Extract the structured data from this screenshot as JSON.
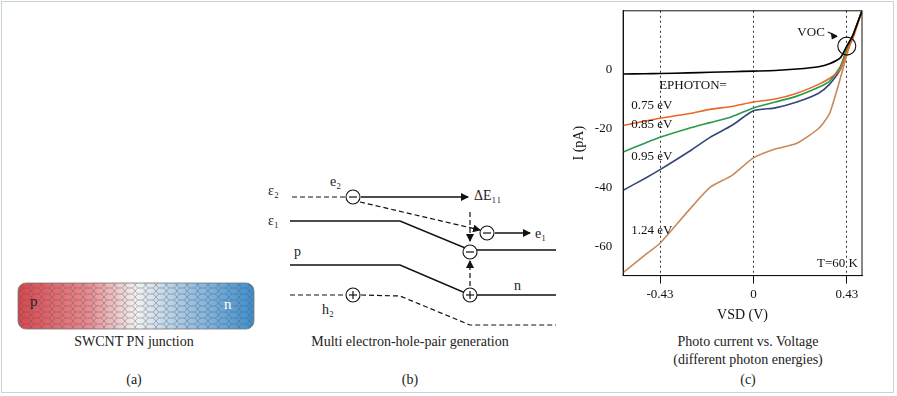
{
  "panel_a": {
    "label": "(a)",
    "caption": "SWCNT PN junction",
    "p": "p",
    "n": "n"
  },
  "panel_b": {
    "label": "(b)",
    "caption": "Multi electron-hole-pair generation",
    "texts": {
      "eps2": "ε₂",
      "e2": "e₂",
      "dE11": "ΔE₁₁",
      "eps1": "ε₁",
      "e1": "e₁",
      "p": "p",
      "n": "n",
      "h2": "h₂"
    }
  },
  "chart_data": {
    "type": "line",
    "label": "(c)",
    "caption": [
      "Photo current vs. Voltage",
      "(different photon energies)"
    ],
    "x_label": "VSD (V)",
    "y_label": "I (pA)",
    "annotations": {
      "title": "EPHOTON=",
      "voc": "VOC",
      "temperature": "T=60 K"
    },
    "x": [
      -0.6,
      -0.5,
      -0.43,
      -0.3,
      -0.2,
      -0.1,
      0,
      0.1,
      0.2,
      0.3,
      0.35,
      0.4,
      0.43,
      0.46,
      0.5
    ],
    "xlim": [
      -0.6,
      0.5
    ],
    "xticks": [
      -0.43,
      0,
      0.43
    ],
    "ylim": [
      -70,
      20
    ],
    "yticks": [
      -60,
      -40,
      -20,
      0
    ],
    "grid": "x",
    "series": [
      {
        "color": "#000000",
        "values": [
          -1.5,
          -1.4,
          -1.3,
          -1.1,
          -0.9,
          -0.7,
          -0.5,
          -0.3,
          0.2,
          1,
          2,
          4,
          8,
          12,
          20
        ]
      },
      {
        "name": "0.75 eV",
        "color": "#e8682a",
        "values": [
          -19,
          -17.5,
          -16.5,
          -15,
          -13.5,
          -12.5,
          -11,
          -10,
          -8,
          -5,
          -3,
          0,
          6,
          11,
          20
        ]
      },
      {
        "name": "0.85 eV",
        "color": "#2a9a4a",
        "values": [
          -28,
          -25,
          -23,
          -20,
          -18,
          -16,
          -13,
          -11,
          -9,
          -6,
          -4,
          1,
          7,
          12,
          20
        ]
      },
      {
        "name": "0.95 eV",
        "color": "#34477a",
        "values": [
          -41,
          -37,
          -34,
          -28,
          -23,
          -19,
          -14,
          -13,
          -11,
          -8,
          -5,
          0,
          7,
          12,
          20
        ]
      },
      {
        "name": "1.24 eV",
        "color": "#c88a5c",
        "values": [
          -69,
          -63,
          -59,
          -48,
          -40,
          -36,
          -30,
          -27,
          -25,
          -20,
          -15,
          -3,
          5,
          12,
          20
        ]
      }
    ]
  }
}
